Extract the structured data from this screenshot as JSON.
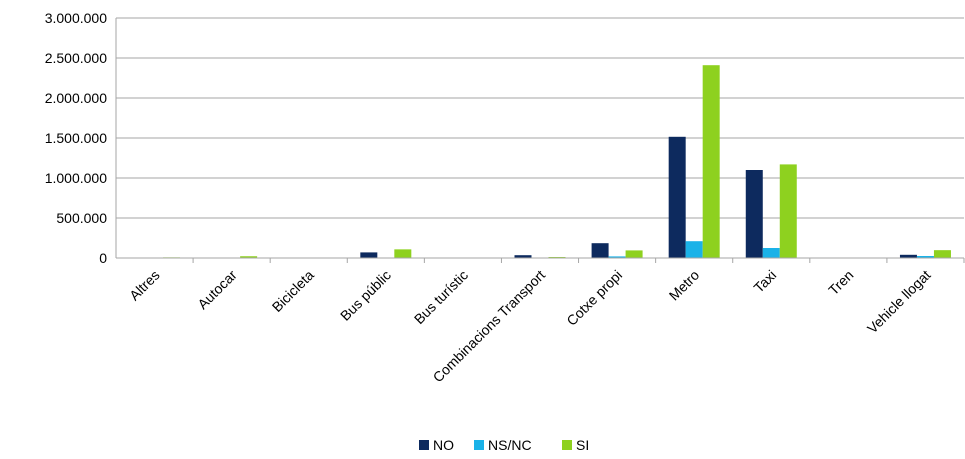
{
  "chart_data": {
    "type": "bar",
    "categories": [
      "Altres",
      "Autocar",
      "Bicicleta",
      "Bus públic",
      "Bus turístic",
      "Combinacions Transport",
      "Cotxe propi",
      "Metro",
      "Taxi",
      "Tren",
      "Vehicle llogat"
    ],
    "series": [
      {
        "name": "NO",
        "color": "#0d2a5e",
        "values": [
          0,
          0,
          0,
          70000,
          0,
          35000,
          185000,
          1515000,
          1100000,
          0,
          40000
        ]
      },
      {
        "name": "NS/NC",
        "color": "#1ab2e8",
        "values": [
          0,
          0,
          0,
          5000,
          0,
          5000,
          20000,
          210000,
          125000,
          0,
          25000
        ]
      },
      {
        "name": "SI",
        "color": "#8ed11f",
        "values": [
          8000,
          22000,
          0,
          108000,
          0,
          12000,
          95000,
          2410000,
          1170000,
          0,
          98000
        ]
      }
    ],
    "yticks": [
      "0",
      "500.000",
      "1.000.000",
      "1.500.000",
      "2.000.000",
      "2.500.000",
      "3.000.000"
    ],
    "ylim": [
      0,
      3000000
    ],
    "grid": true,
    "legend": "bottom-center",
    "title": "",
    "xlabel": "",
    "ylabel": ""
  }
}
